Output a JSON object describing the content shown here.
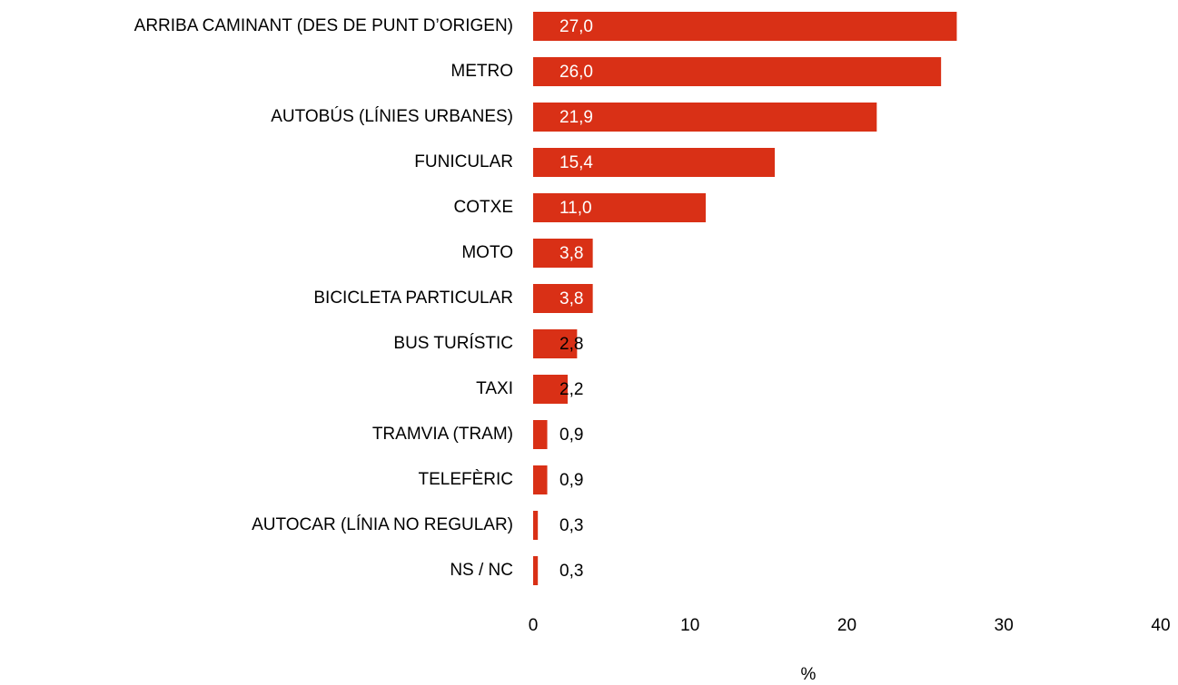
{
  "chart_data": {
    "type": "bar",
    "orientation": "horizontal",
    "categories": [
      "ARRIBA CAMINANT (DES DE PUNT D’ORIGEN)",
      "METRO",
      "AUTOBÚS (LÍNIES URBANES)",
      "FUNICULAR",
      "COTXE",
      "MOTO",
      "BICICLETA PARTICULAR",
      "BUS TURÍSTIC",
      "TAXI",
      "TRAMVIA (TRAM)",
      "TELEFÈRIC",
      "AUTOCAR (LÍNIA NO REGULAR)",
      "NS / NC"
    ],
    "values": [
      27.0,
      26.0,
      21.9,
      15.4,
      11.0,
      3.8,
      3.8,
      2.8,
      2.2,
      0.9,
      0.9,
      0.3,
      0.3
    ],
    "value_labels": [
      "27,0",
      "26,0",
      "21,9",
      "15,4",
      "11,0",
      "3,8",
      "3,8",
      "2,8",
      "2,2",
      "0,9",
      "0,9",
      "0,3",
      "0,3"
    ],
    "color": "#d93016",
    "xlim": [
      0,
      40
    ],
    "xticks": [
      0,
      10,
      20,
      30,
      40
    ],
    "xlabel": "%",
    "grid": false
  }
}
